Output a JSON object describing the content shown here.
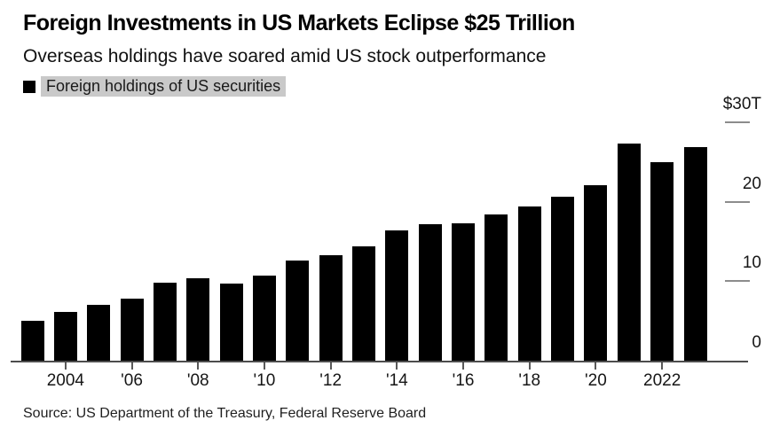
{
  "header": {
    "title": "Foreign Investments in US Markets Eclipse $25 Trillion",
    "subtitle": "Overseas holdings have soared amid US stock outperformance"
  },
  "legend": {
    "label": "Foreign holdings of US securities",
    "swatch_color": "#000000",
    "highlight_color": "#c9c9c9"
  },
  "chart_data": {
    "type": "bar",
    "title": "Foreign Investments in US Markets Eclipse $25 Trillion",
    "subtitle": "Overseas holdings have soared amid US stock outperformance",
    "series_name": "Foreign holdings of US securities",
    "unit": "trillion USD",
    "categories": [
      2003,
      2004,
      2005,
      2006,
      2007,
      2008,
      2009,
      2010,
      2011,
      2012,
      2013,
      2014,
      2015,
      2016,
      2017,
      2018,
      2019,
      2020,
      2021,
      2022,
      2023
    ],
    "values": [
      5.0,
      6.1,
      7.0,
      7.8,
      9.8,
      10.4,
      9.7,
      10.7,
      12.6,
      13.3,
      14.4,
      16.4,
      17.2,
      17.3,
      18.4,
      19.4,
      20.6,
      22.1,
      27.3,
      25.0,
      26.9
    ],
    "xlabel": "",
    "ylabel": "",
    "ylim": [
      0,
      30
    ],
    "yticks": [
      0,
      10,
      20,
      30
    ],
    "ytick_labels": [
      "0",
      "10",
      "20",
      "$30T"
    ],
    "xtick_years": [
      2004,
      2006,
      2008,
      2010,
      2012,
      2014,
      2016,
      2018,
      2020,
      2022
    ],
    "xtick_labels": [
      "2004",
      "'06",
      "'08",
      "'10",
      "'12",
      "'14",
      "'16",
      "'18",
      "'20",
      "2022"
    ],
    "bar_color": "#000000",
    "grid": false,
    "legend_position": "top-left",
    "y_axis_side": "right"
  },
  "footer": {
    "source": "Source: US Department of the Treasury, Federal Reserve Board"
  },
  "colors": {
    "background": "#ffffff",
    "axis_line": "#4d4d4d",
    "tick_line": "#8c8c8c",
    "text": "#161616"
  }
}
